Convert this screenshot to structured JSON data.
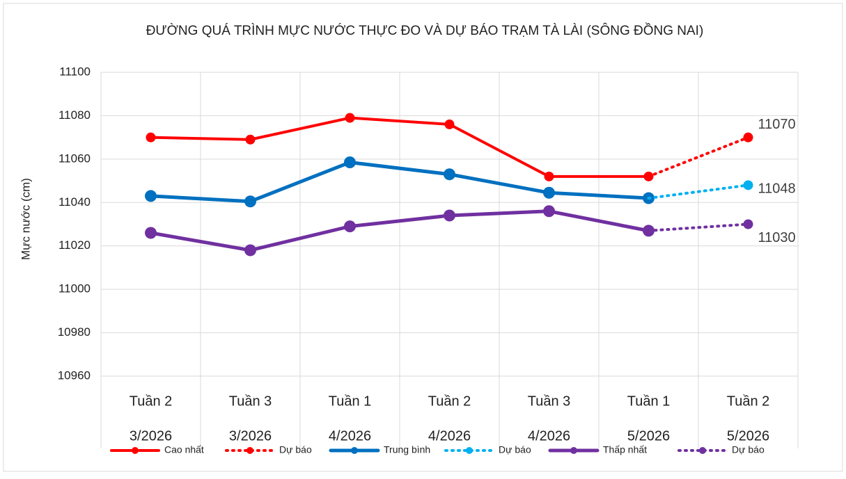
{
  "chart_data": {
    "type": "line",
    "title": "ĐƯỜNG QUÁ TRÌNH MỰC NƯỚC THỰC ĐO VÀ DỰ BÁO TRẠM TÀ LÀI (SÔNG ĐỒNG NAI)",
    "y_label": "Mực nước (cm)",
    "categories": [
      [
        "Tuần 2",
        "3/2026"
      ],
      [
        "Tuần 3",
        "3/2026"
      ],
      [
        "Tuần 1",
        "4/2026"
      ],
      [
        "Tuần 2",
        "4/2026"
      ],
      [
        "Tuần 3",
        "4/2026"
      ],
      [
        "Tuần 1",
        "5/2026"
      ],
      [
        "Tuần 2",
        "5/2026"
      ]
    ],
    "series": [
      {
        "name": "Cao nhất",
        "color": "#ff0000",
        "dash": "solid",
        "values": [
          11070,
          11069,
          11079,
          11076,
          11052,
          11052,
          null
        ]
      },
      {
        "name": "Dự báo",
        "color": "#ff0000",
        "dash": "dotted",
        "data_labels": true,
        "values": [
          null,
          null,
          null,
          null,
          null,
          11052,
          11070
        ]
      },
      {
        "name": "Trung bình",
        "color": "#0070c0",
        "dash": "solid",
        "values": [
          11043,
          11040.5,
          11058.5,
          11053,
          11044.5,
          11042,
          null
        ]
      },
      {
        "name": "Dự báo",
        "color": "#00b0f0",
        "dash": "dotted",
        "data_labels": true,
        "values": [
          null,
          null,
          null,
          null,
          null,
          11042,
          11048
        ]
      },
      {
        "name": "Thấp nhất",
        "color": "#7030a0",
        "dash": "solid",
        "values": [
          11026,
          11018,
          11029,
          11034,
          11036,
          11027,
          null
        ]
      },
      {
        "name": "Dự báo",
        "color": "#7030a0",
        "dash": "dotted",
        "data_labels": true,
        "values": [
          null,
          null,
          null,
          null,
          null,
          11027,
          11030
        ]
      }
    ],
    "ylim": [
      10960,
      11100
    ],
    "yticks": [
      10960,
      10980,
      11000,
      11020,
      11040,
      11060,
      11080,
      11100
    ],
    "grid": true,
    "legend": "bottom"
  }
}
